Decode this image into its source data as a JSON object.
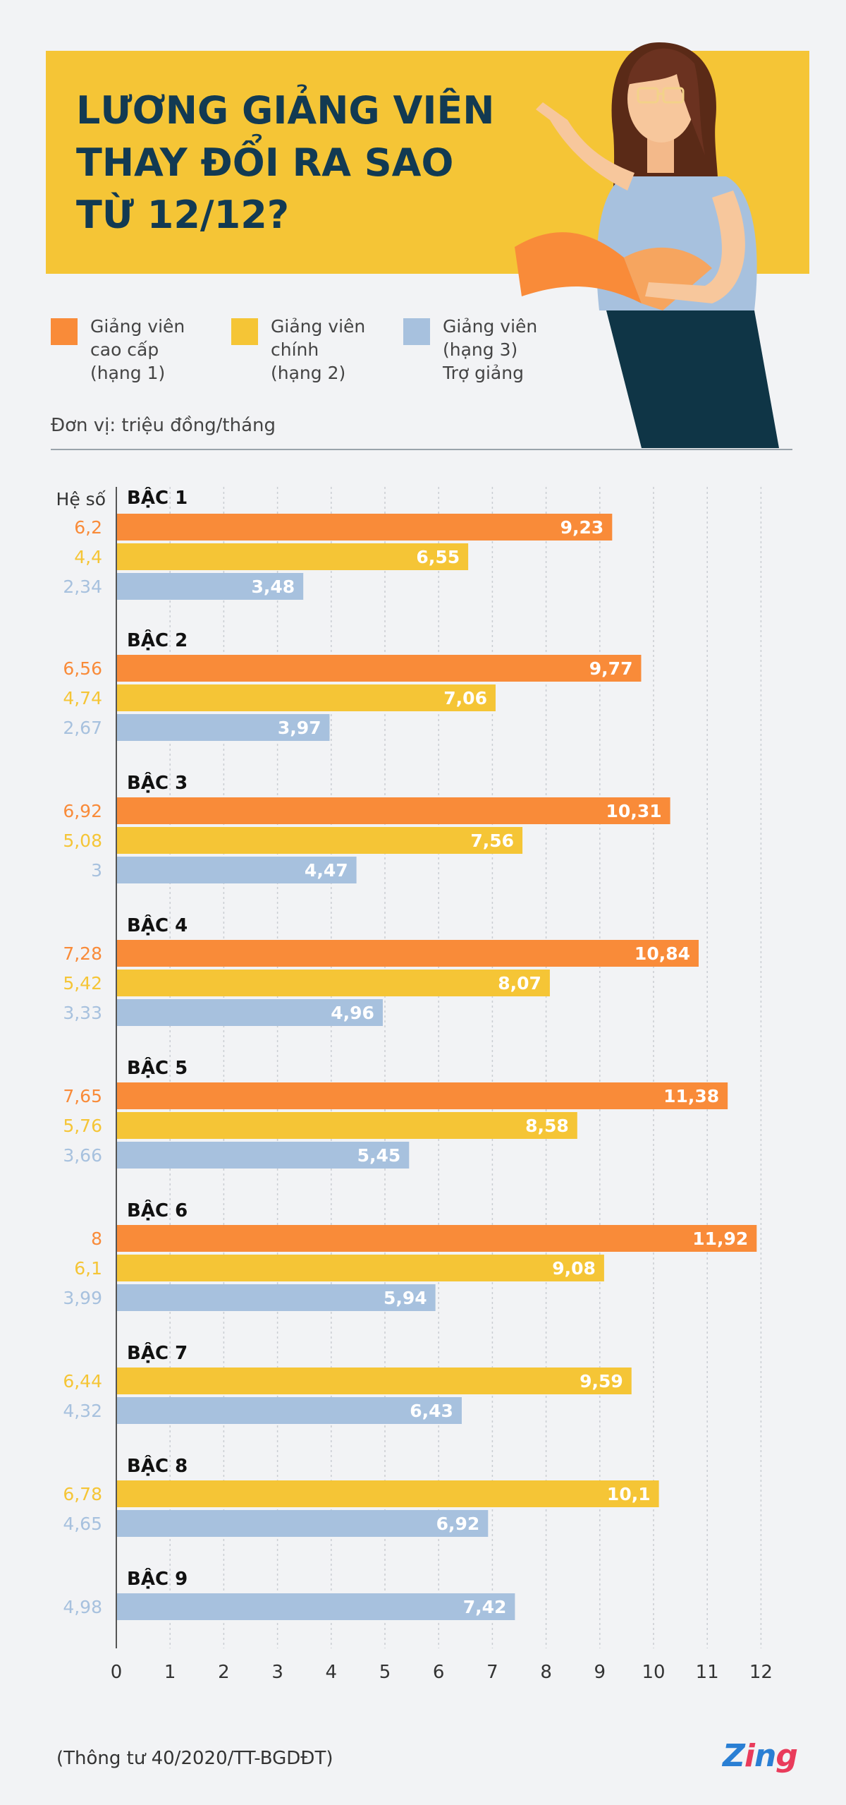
{
  "title_lines": [
    "LƯƠNG GIẢNG VIÊN",
    "THAY ĐỔI RA SAO",
    "TỪ 12/12?"
  ],
  "legend": [
    {
      "lines": [
        "Giảng viên",
        "cao cấp",
        "(hạng 1)"
      ],
      "color": "#f98b39"
    },
    {
      "lines": [
        "Giảng viên",
        "chính",
        "(hạng 2)"
      ],
      "color": "#f5c536"
    },
    {
      "lines": [
        "Giảng viên",
        "(hạng 3)",
        "Trợ giảng"
      ],
      "color": "#a7c1de"
    }
  ],
  "unit": "Đơn vị: triệu đồng/tháng",
  "source": "(Thông tư 40/2020/TT-BGDĐT)",
  "logo": "Zing",
  "chart_data": {
    "type": "bar",
    "orientation": "horizontal",
    "coef_header": "Hệ số",
    "xlim": [
      0,
      12
    ],
    "x_ticks": [
      "0",
      "1",
      "2",
      "3",
      "4",
      "5",
      "6",
      "7",
      "8",
      "9",
      "10",
      "11",
      "12"
    ],
    "colors": {
      "hang1": "#f98b39",
      "hang2": "#f5c536",
      "hang3": "#a7c1de"
    },
    "groups": [
      {
        "label": "BẬC 1",
        "bars": [
          {
            "series": "hang1",
            "coef": "6,2",
            "value": 9.23,
            "value_label": "9,23"
          },
          {
            "series": "hang2",
            "coef": "4,4",
            "value": 6.55,
            "value_label": "6,55"
          },
          {
            "series": "hang3",
            "coef": "2,34",
            "value": 3.48,
            "value_label": "3,48"
          }
        ]
      },
      {
        "label": "BẬC 2",
        "bars": [
          {
            "series": "hang1",
            "coef": "6,56",
            "value": 9.77,
            "value_label": "9,77"
          },
          {
            "series": "hang2",
            "coef": "4,74",
            "value": 7.06,
            "value_label": "7,06"
          },
          {
            "series": "hang3",
            "coef": "2,67",
            "value": 3.97,
            "value_label": "3,97"
          }
        ]
      },
      {
        "label": "BẬC 3",
        "bars": [
          {
            "series": "hang1",
            "coef": "6,92",
            "value": 10.31,
            "value_label": "10,31"
          },
          {
            "series": "hang2",
            "coef": "5,08",
            "value": 7.56,
            "value_label": "7,56"
          },
          {
            "series": "hang3",
            "coef": "3",
            "value": 4.47,
            "value_label": "4,47"
          }
        ]
      },
      {
        "label": "BẬC 4",
        "bars": [
          {
            "series": "hang1",
            "coef": "7,28",
            "value": 10.84,
            "value_label": "10,84"
          },
          {
            "series": "hang2",
            "coef": "5,42",
            "value": 8.07,
            "value_label": "8,07"
          },
          {
            "series": "hang3",
            "coef": "3,33",
            "value": 4.96,
            "value_label": "4,96"
          }
        ]
      },
      {
        "label": "BẬC 5",
        "bars": [
          {
            "series": "hang1",
            "coef": "7,65",
            "value": 11.38,
            "value_label": "11,38"
          },
          {
            "series": "hang2",
            "coef": "5,76",
            "value": 8.58,
            "value_label": "8,58"
          },
          {
            "series": "hang3",
            "coef": "3,66",
            "value": 5.45,
            "value_label": "5,45"
          }
        ]
      },
      {
        "label": "BẬC 6",
        "bars": [
          {
            "series": "hang1",
            "coef": "8",
            "value": 11.92,
            "value_label": "11,92"
          },
          {
            "series": "hang2",
            "coef": "6,1",
            "value": 9.08,
            "value_label": "9,08"
          },
          {
            "series": "hang3",
            "coef": "3,99",
            "value": 5.94,
            "value_label": "5,94"
          }
        ]
      },
      {
        "label": "BẬC 7",
        "bars": [
          {
            "series": "hang2",
            "coef": "6,44",
            "value": 9.59,
            "value_label": "9,59"
          },
          {
            "series": "hang3",
            "coef": "4,32",
            "value": 6.43,
            "value_label": "6,43"
          }
        ]
      },
      {
        "label": "BẬC 8",
        "bars": [
          {
            "series": "hang2",
            "coef": "6,78",
            "value": 10.1,
            "value_label": "10,1"
          },
          {
            "series": "hang3",
            "coef": "4,65",
            "value": 6.92,
            "value_label": "6,92"
          }
        ]
      },
      {
        "label": "BẬC 9",
        "bars": [
          {
            "series": "hang3",
            "coef": "4,98",
            "value": 7.42,
            "value_label": "7,42"
          }
        ]
      }
    ]
  }
}
